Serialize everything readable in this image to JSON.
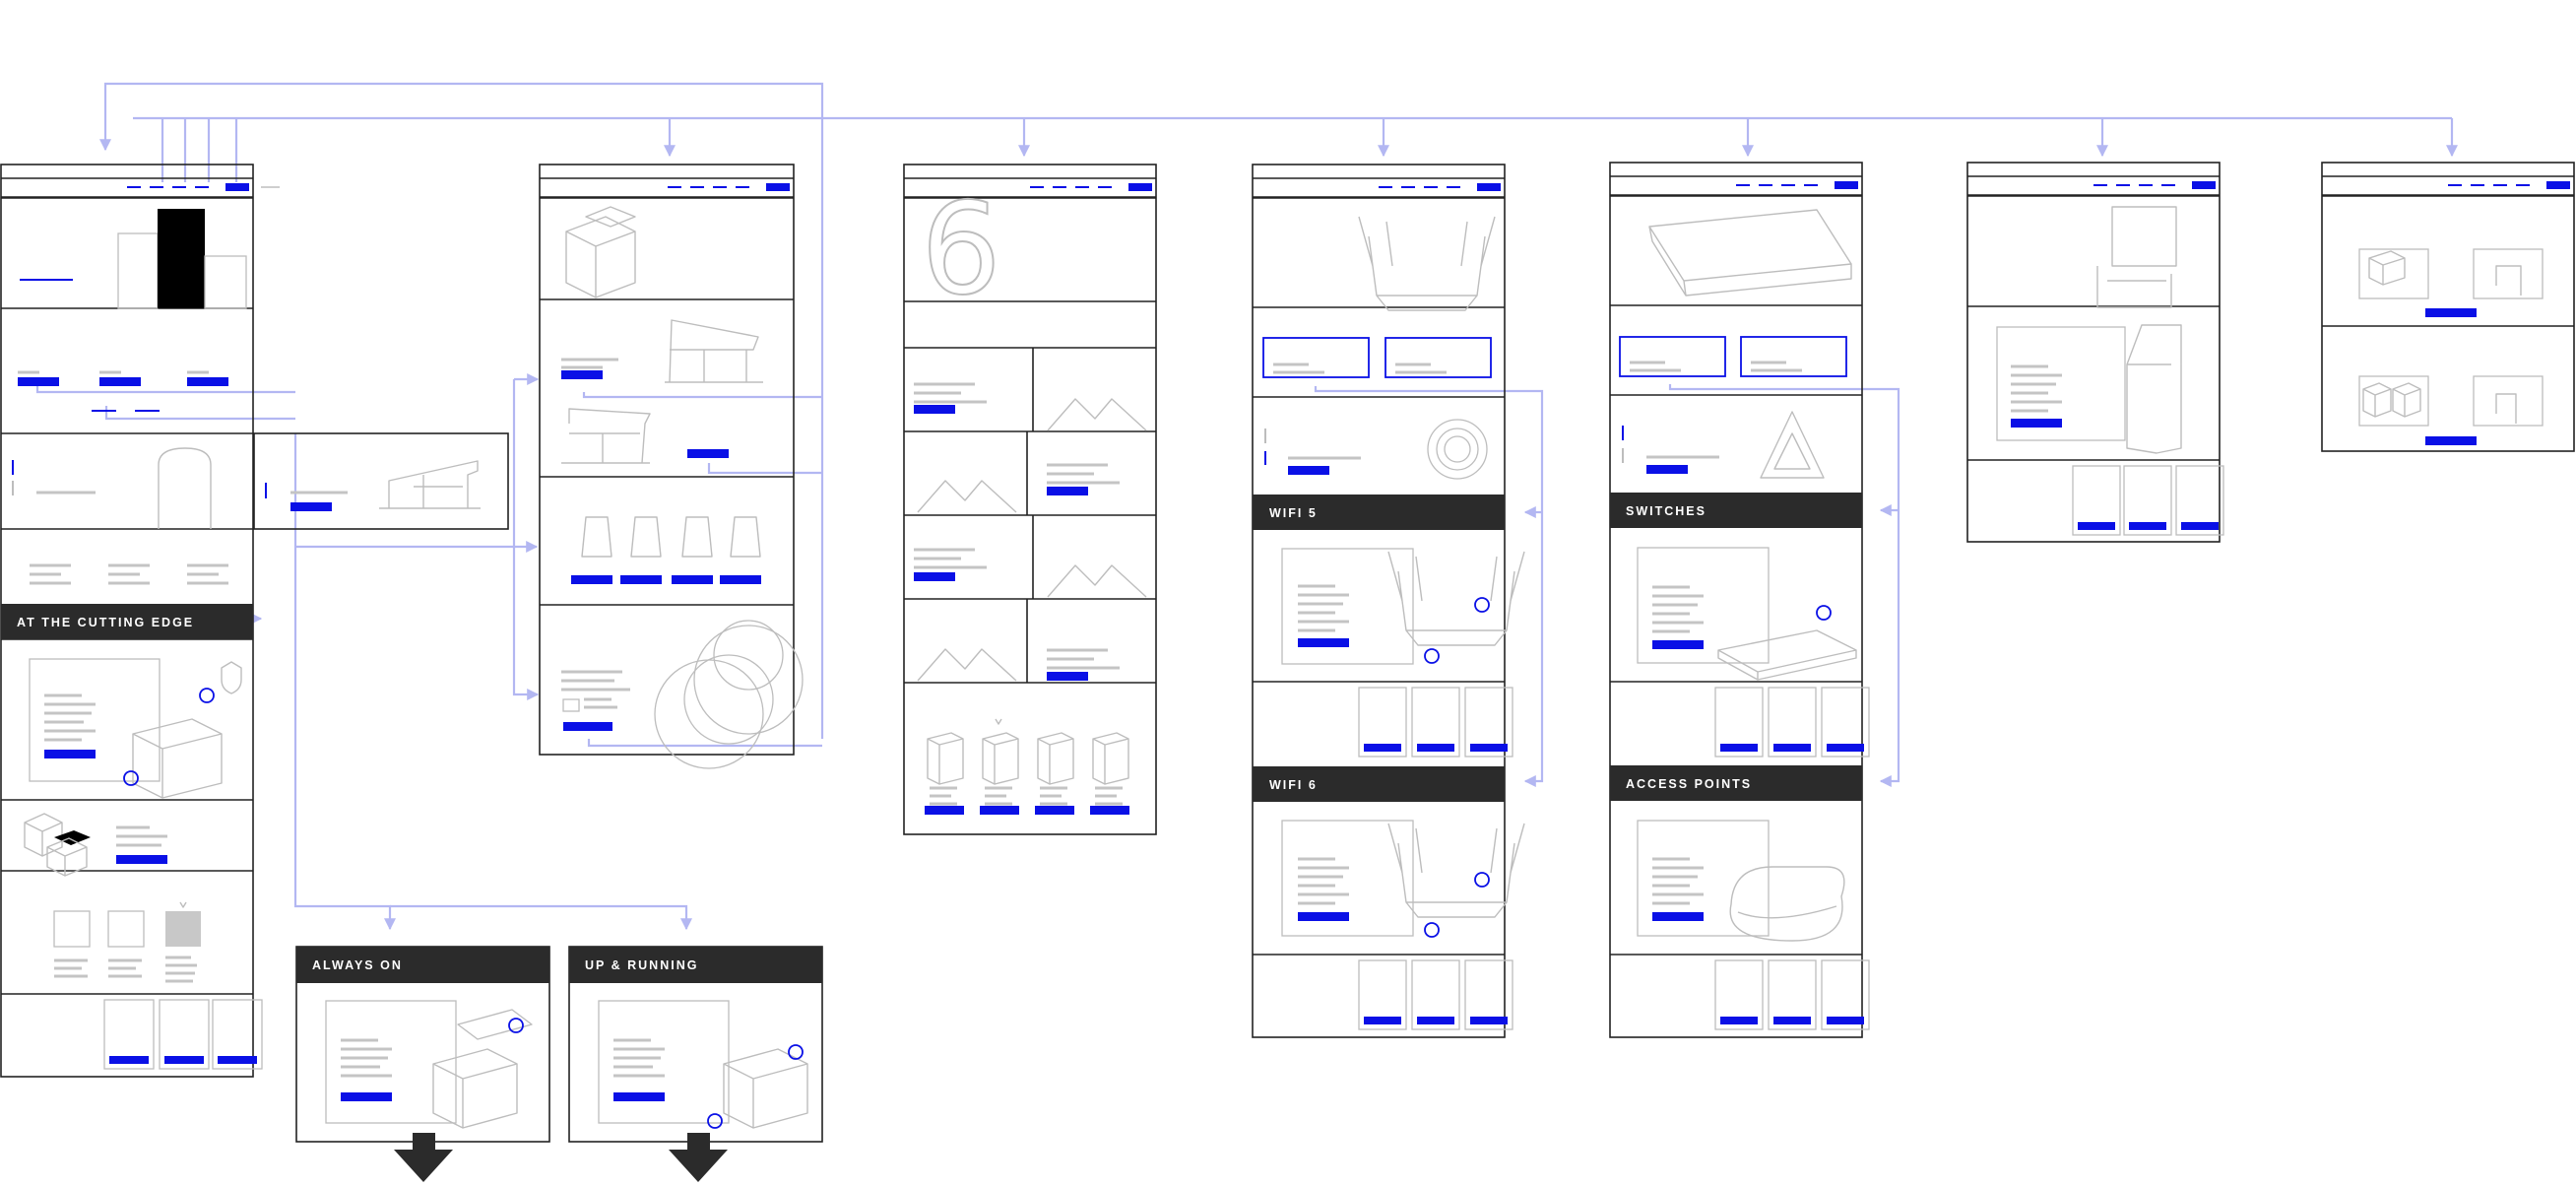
{
  "diagram": {
    "type": "website-sitemap-wireframe",
    "colors": {
      "accent": "#0a10e6",
      "connector": "#b3b7f2",
      "outline": "#222222",
      "sketch": "#bdbdbd",
      "text_line": "#c4c4c4",
      "band": "#2b2b2b",
      "filled_box": "#c8c8c8"
    },
    "section_labels": {
      "cutting_edge": "AT THE CUTTING EDGE",
      "always_on": "ALWAYS ON",
      "up_running": "UP & RUNNING",
      "wifi5": "WIFI 5",
      "wifi6": "WIFI 6",
      "switches": "SWITCHES",
      "access_points": "ACCESS POINTS"
    },
    "hero_numeral": "6",
    "pages": [
      {
        "name": "home-page",
        "sections": [
          "navigation",
          "hero",
          "product-links",
          "feature",
          "text-columns",
          "at-the-cutting-edge",
          "product-row",
          "product-grid",
          "product-cards"
        ]
      },
      {
        "name": "solutions-page",
        "sections": [
          "navigation",
          "hero",
          "feature",
          "feature",
          "product-lineup",
          "feature"
        ]
      },
      {
        "name": "wifi6-page",
        "sections": [
          "navigation",
          "hero",
          "intro",
          "alternating-features",
          "product-lineup"
        ]
      },
      {
        "name": "routers-page",
        "sections": [
          "navigation",
          "hero",
          "category-links",
          "feature",
          "wifi-5",
          "product-cards",
          "wifi-6",
          "product-cards"
        ]
      },
      {
        "name": "networking-page",
        "sections": [
          "navigation",
          "hero",
          "category-links",
          "feature",
          "switches",
          "product-cards",
          "access-points",
          "product-cards"
        ]
      },
      {
        "name": "mesh-page",
        "sections": [
          "navigation",
          "hero",
          "feature",
          "product-cards"
        ]
      },
      {
        "name": "products-page",
        "sections": [
          "navigation",
          "product-grid"
        ]
      },
      {
        "name": "always-on-page",
        "sections": [
          "always-on"
        ]
      },
      {
        "name": "up-and-running-page",
        "sections": [
          "up-and-running"
        ]
      }
    ],
    "continuation_arrows": 2,
    "icons": [
      "shield-icon",
      "triangle-icon",
      "concentric-circles-icon",
      "mountain-icon",
      "arrow-down-icon"
    ]
  }
}
